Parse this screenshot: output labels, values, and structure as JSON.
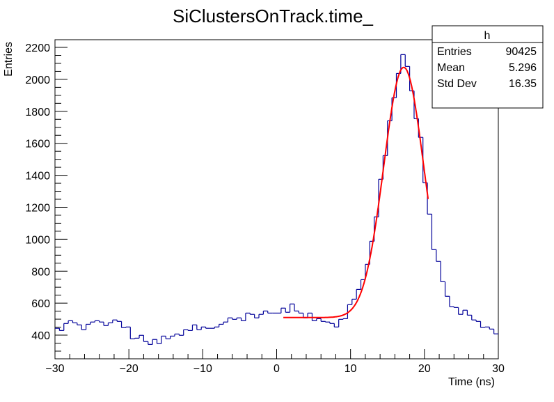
{
  "chart_data": {
    "type": "bar",
    "style": "step-histogram",
    "title": "SiClustersOnTrack.time_",
    "xlabel": "Time (ns)",
    "ylabel": "Entries",
    "xlim": [
      -30,
      30
    ],
    "ylim": [
      252,
      2248
    ],
    "x_major_ticks": [
      -30,
      -20,
      -10,
      0,
      10,
      20,
      30
    ],
    "x_tick_labels": [
      "−30",
      "−20",
      "−10",
      "0",
      "10",
      "20",
      "30"
    ],
    "y_major_ticks": [
      400,
      600,
      800,
      1000,
      1200,
      1400,
      1600,
      1800,
      2000,
      2200
    ],
    "y_tick_labels": [
      "400",
      "600",
      "800",
      "1000",
      "1200",
      "1400",
      "1600",
      "1800",
      "2000",
      "2200"
    ],
    "grid": false,
    "bin_edges_range": [
      -30,
      30
    ],
    "values": [
      443,
      429,
      473,
      490,
      477,
      464,
      434,
      468,
      482,
      490,
      482,
      460,
      477,
      495,
      486,
      447,
      451,
      377,
      381,
      399,
      360,
      342,
      373,
      347,
      394,
      377,
      394,
      407,
      399,
      434,
      429,
      464,
      434,
      451,
      443,
      443,
      451,
      468,
      482,
      508,
      499,
      508,
      490,
      538,
      530,
      508,
      530,
      551,
      538,
      538,
      538,
      569,
      543,
      595,
      551,
      538,
      508,
      538,
      490,
      503,
      486,
      482,
      473,
      451,
      499,
      503,
      591,
      625,
      686,
      747,
      843,
      987,
      1140,
      1375,
      1523,
      1741,
      1885,
      2037,
      2155,
      2081,
      1928,
      1754,
      1637,
      1353,
      1157,
      935,
      861,
      734,
      643,
      578,
      573,
      530,
      556,
      525,
      495,
      486,
      448,
      451,
      438,
      408
    ],
    "series_color": "#000099",
    "fit": {
      "name": "fit",
      "model": "const + gaus",
      "const": 510,
      "amplitude": 1565,
      "mean": 17.2,
      "sigma": 2.7,
      "range": [
        0.9,
        20.5
      ],
      "color": "#ff0000"
    },
    "stats_box": {
      "title": "h",
      "placement": "top-right",
      "rows": [
        {
          "label": "Entries",
          "value": "90425"
        },
        {
          "label": "Mean",
          "value": "5.296"
        },
        {
          "label": "Std Dev",
          "value": "16.35"
        }
      ]
    }
  }
}
